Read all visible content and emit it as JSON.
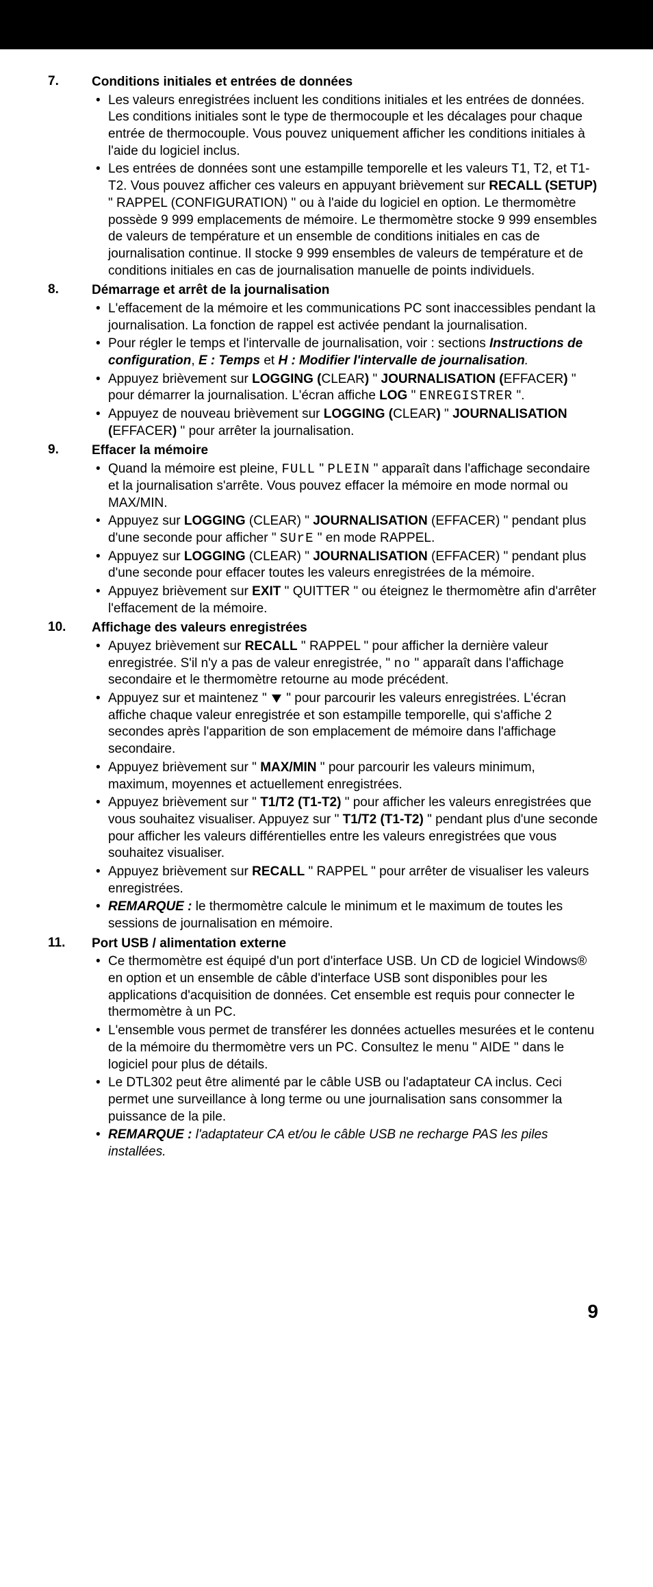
{
  "page_number": "9",
  "sections": [
    {
      "num": "7.",
      "heading": "Conditions initiales et entrées de données",
      "bullets": [
        [
          {
            "t": "Les valeurs enregistrées incluent les conditions initiales et les entrées de données. Les conditions initiales sont le type de thermocouple et les décalages pour chaque entrée de thermocouple. Vous pouvez uniquement afficher les conditions initiales à l'aide du logiciel inclus."
          }
        ],
        [
          {
            "t": "Les entrées de données sont une estampille temporelle et les valeurs T1, T2, et T1-T2. Vous pouvez afficher ces valeurs en appuyant brièvement sur "
          },
          {
            "t": "RECALL (SETUP)",
            "c": "b"
          },
          {
            "t": " \" RAPPEL (CONFIGURATION) \" ou à l'aide du logiciel en option. Le thermomètre possède 9 999 emplacements de mémoire. Le thermomètre stocke 9 999 ensembles de valeurs de température et un ensemble de conditions initiales en cas de journalisation continue. Il stocke 9 999 ensembles de valeurs de température et de conditions initiales en cas de journalisation manuelle de points individuels."
          }
        ]
      ]
    },
    {
      "num": "8.",
      "heading": "Démarrage et arrêt de la journalisation",
      "bullets": [
        [
          {
            "t": "L'effacement de la mémoire et les communications PC sont inaccessibles pendant la journalisation. La fonction de rappel est activée pendant la journalisation."
          }
        ],
        [
          {
            "t": "Pour régler le temps et l'intervalle de journalisation, voir : sections "
          },
          {
            "t": "Instructions de configuration",
            "c": "bi"
          },
          {
            "t": ", "
          },
          {
            "t": "E : Temps",
            "c": "bi"
          },
          {
            "t": " et "
          },
          {
            "t": "H : Modifier l'intervalle de journalisation",
            "c": "bi"
          },
          {
            "t": ".",
            "c": "i"
          }
        ],
        [
          {
            "t": "Appuyez brièvement sur "
          },
          {
            "t": "LOGGING (",
            "c": "b"
          },
          {
            "t": "CLEAR"
          },
          {
            "t": ")",
            "c": "b"
          },
          {
            "t": " \" "
          },
          {
            "t": "JOURNALISATION (",
            "c": "b"
          },
          {
            "t": "EFFACER"
          },
          {
            "t": ")",
            "c": "b"
          },
          {
            "t": " \" pour démarrer la journalisation. L'écran affiche "
          },
          {
            "t": "LOG",
            "c": "b"
          },
          {
            "t": " \" "
          },
          {
            "t": "ENREGISTRER",
            "c": "seg7"
          },
          {
            "t": " \"."
          }
        ],
        [
          {
            "t": "Appuyez de nouveau brièvement sur "
          },
          {
            "t": "LOGGING (",
            "c": "b"
          },
          {
            "t": "CLEAR"
          },
          {
            "t": ")",
            "c": "b"
          },
          {
            "t": " \" "
          },
          {
            "t": "JOURNALISATION (",
            "c": "b"
          },
          {
            "t": "EFFACER"
          },
          {
            "t": ")",
            "c": "b"
          },
          {
            "t": " \" pour arrêter la journalisation."
          }
        ]
      ]
    },
    {
      "num": "9.",
      "heading": "Effacer la mémoire",
      "bullets": [
        [
          {
            "t": "Quand la mémoire est pleine, "
          },
          {
            "t": "FULL",
            "c": "seg7"
          },
          {
            "t": " \" "
          },
          {
            "t": "PLEIN",
            "c": "seg7"
          },
          {
            "t": " \" apparaît dans l'affichage secondaire et la journalisation s'arrête. Vous pouvez effacer la mémoire en mode normal ou MAX/MIN."
          }
        ],
        [
          {
            "t": "Appuyez sur "
          },
          {
            "t": "LOGGING",
            "c": "b"
          },
          {
            "t": " (CLEAR) \" "
          },
          {
            "t": "JOURNALISATION",
            "c": "b"
          },
          {
            "t": " (EFFACER) \" pendant plus d'une seconde pour afficher \" "
          },
          {
            "t": "SUrE",
            "c": "seg7"
          },
          {
            "t": " \" en mode RAPPEL."
          }
        ],
        [
          {
            "t": "Appuyez sur "
          },
          {
            "t": "LOGGING",
            "c": "b"
          },
          {
            "t": " (CLEAR) \" "
          },
          {
            "t": "JOURNALISATION",
            "c": "b"
          },
          {
            "t": " (EFFACER) \" pendant plus d'une seconde pour effacer toutes les valeurs enregistrées de la mémoire."
          }
        ],
        [
          {
            "t": "Appuyez brièvement sur "
          },
          {
            "t": "EXIT",
            "c": "b"
          },
          {
            "t": " \" QUITTER \" ou éteignez le thermomètre afin d'arrêter l'effacement de la mémoire."
          }
        ]
      ]
    },
    {
      "num": "10.",
      "heading": "Affichage des valeurs enregistrées",
      "bullets": [
        [
          {
            "t": "Apuyez brièvement sur "
          },
          {
            "t": "RECALL",
            "c": "b"
          },
          {
            "t": " \" RAPPEL \" pour afficher la dernière valeur enregistrée. S'il n'y a pas de valeur enregistrée, \" "
          },
          {
            "t": "no",
            "c": "seg7"
          },
          {
            "t": " \" apparaît dans l'affichage secondaire et le thermomètre retourne au mode précédent."
          }
        ],
        [
          {
            "t": "Appuyez sur et maintenez \" "
          },
          {
            "t": "__DOWN__"
          },
          {
            "t": " \" pour parcourir les valeurs enregistrées. L'écran affiche chaque valeur enregistrée et son estampille temporelle, qui s'affiche 2 secondes après l'apparition de son emplacement de mémoire dans l'affichage secondaire."
          }
        ],
        [
          {
            "t": "Appuyez brièvement sur \" "
          },
          {
            "t": "MAX/MIN",
            "c": "b"
          },
          {
            "t": " \" pour parcourir les valeurs minimum, maximum, moyennes et actuellement enregistrées."
          }
        ],
        [
          {
            "t": "Appuyez brièvement sur \" "
          },
          {
            "t": "T1/T2 (T1-T2)",
            "c": "b"
          },
          {
            "t": " \" pour afficher les valeurs enregistrées que vous souhaitez visualiser. Appuyez sur \" "
          },
          {
            "t": "T1/T2 (T1-T2)",
            "c": "b"
          },
          {
            "t": " \" pendant plus d'une seconde pour afficher les valeurs différentielles entre les valeurs enregistrées que vous souhaitez visualiser."
          }
        ],
        [
          {
            "t": "Appuyez brièvement sur "
          },
          {
            "t": "RECALL",
            "c": "b"
          },
          {
            "t": " \" RAPPEL \" pour arrêter de visualiser les valeurs enregistrées."
          }
        ],
        [
          {
            "t": "REMARQUE : ",
            "c": "bi"
          },
          {
            "t": "le thermomètre calcule le minimum et le maximum de toutes les sessions de journalisation en mémoire."
          }
        ]
      ]
    },
    {
      "num": "11.",
      "heading": "Port USB / alimentation externe",
      "bullets": [
        [
          {
            "t": "Ce thermomètre est équipé d'un port d'interface USB. Un CD de logiciel Windows® en option et un ensemble de câble d'interface USB sont disponibles pour les applications d'acquisition de données. Cet ensemble est requis pour connecter le thermomètre à un PC."
          }
        ],
        [
          {
            "t": "L'ensemble vous permet de transférer les données actuelles mesurées et le contenu de la mémoire du thermomètre vers un PC. Consultez le menu \" AIDE \" dans le logiciel pour plus de détails."
          }
        ],
        [
          {
            "t": "Le DTL302 peut être alimenté par le câble USB ou l'adaptateur CA inclus. Ceci permet une surveillance à long terme ou une journalisation sans consommer la puissance de la pile."
          }
        ],
        [
          {
            "t": "REMARQUE : ",
            "c": "bi"
          },
          {
            "t": "l'adaptateur CA et/ou le câble USB ne recharge PAS les piles installées.",
            "c": "i"
          }
        ]
      ]
    }
  ]
}
